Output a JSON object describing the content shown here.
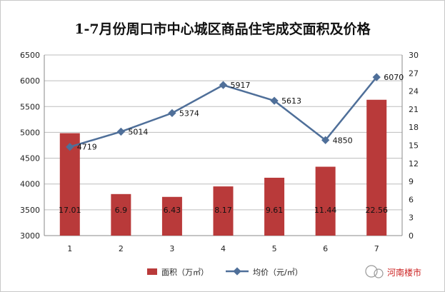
{
  "chart_data": {
    "type": "bar+line",
    "title": "1-7月份周口市中心城区商品住宅成交面积及价格",
    "categories": [
      "1",
      "2",
      "3",
      "4",
      "5",
      "6",
      "7"
    ],
    "series": [
      {
        "name": "面积（万㎡）",
        "type": "bar",
        "axis": "right",
        "values": [
          17.01,
          6.9,
          6.43,
          8.17,
          9.61,
          11.44,
          22.56
        ],
        "color": "#b93a3a"
      },
      {
        "name": "均价（元/㎡）",
        "type": "line",
        "axis": "left",
        "values": [
          4719,
          5014,
          5374,
          5917,
          5613,
          4850,
          6070
        ],
        "color": "#4f6f99"
      }
    ],
    "y_left": {
      "min": 3000,
      "max": 6500,
      "ticks": [
        "3000",
        "3500",
        "4000",
        "4500",
        "5000",
        "5500",
        "6000",
        "6500"
      ]
    },
    "y_right": {
      "min": 0,
      "max": 30,
      "ticks": [
        "0",
        "3",
        "6",
        "9",
        "12",
        "15",
        "18",
        "21",
        "24",
        "27",
        "30"
      ]
    },
    "grid": true,
    "legend": "bottom"
  },
  "watermark": {
    "brand": "河南楼市"
  }
}
